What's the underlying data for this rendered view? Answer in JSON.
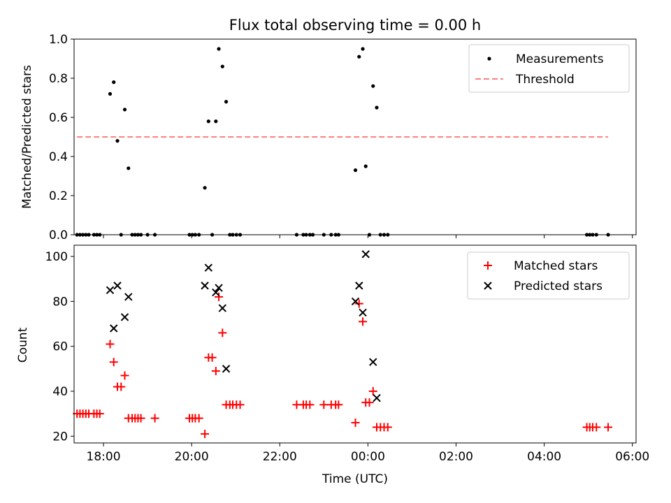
{
  "colors": {
    "measurements": "#000000",
    "threshold": "#ff8080",
    "matched": "#ff0000",
    "predicted": "#000000"
  },
  "chart_data": [
    {
      "type": "scatter",
      "title": "Flux total observing time = 0.00 h",
      "xlabel": "",
      "ylabel": "Matched/Predicted stars",
      "xlim": [
        "17:20",
        "06:05"
      ],
      "ylim": [
        0,
        1.0
      ],
      "yticks": [
        "0.0",
        "0.2",
        "0.4",
        "0.6",
        "0.8",
        "1.0"
      ],
      "yticks_values": [
        0,
        0.2,
        0.4,
        0.6,
        0.8,
        1.0
      ],
      "xticks_values": [
        "18:00",
        "20:00",
        "22:00",
        "00:00",
        "02:00",
        "04:00",
        "06:00"
      ],
      "legend_position": "upper-right",
      "series": [
        {
          "name": "Measurements",
          "marker": "dot",
          "points": [
            [
              "17:24",
              0
            ],
            [
              "17:28",
              0
            ],
            [
              "17:32",
              0
            ],
            [
              "17:36",
              0
            ],
            [
              "17:40",
              0
            ],
            [
              "17:47",
              0
            ],
            [
              "17:51",
              0
            ],
            [
              "17:55",
              0
            ],
            [
              "18:09",
              0.72
            ],
            [
              "18:14",
              0.78
            ],
            [
              "18:19",
              0.48
            ],
            [
              "18:24",
              0
            ],
            [
              "18:29",
              0.64
            ],
            [
              "18:34",
              0.34
            ],
            [
              "18:39",
              0
            ],
            [
              "18:43",
              0
            ],
            [
              "18:47",
              0
            ],
            [
              "18:51",
              0
            ],
            [
              "19:00",
              0
            ],
            [
              "19:10",
              0
            ],
            [
              "19:57",
              0
            ],
            [
              "20:01",
              0
            ],
            [
              "20:05",
              0
            ],
            [
              "20:10",
              0
            ],
            [
              "20:18",
              0.24
            ],
            [
              "20:23",
              0.58
            ],
            [
              "20:28",
              0
            ],
            [
              "20:33",
              0.58
            ],
            [
              "20:37",
              0.95
            ],
            [
              "20:42",
              0.86
            ],
            [
              "20:47",
              0.68
            ],
            [
              "20:52",
              0
            ],
            [
              "20:56",
              0
            ],
            [
              "21:01",
              0
            ],
            [
              "21:06",
              0
            ],
            [
              "22:23",
              0
            ],
            [
              "22:32",
              0
            ],
            [
              "22:36",
              0
            ],
            [
              "22:41",
              0
            ],
            [
              "22:45",
              0
            ],
            [
              "23:00",
              0
            ],
            [
              "23:10",
              0
            ],
            [
              "23:16",
              0
            ],
            [
              "23:20",
              0
            ],
            [
              "23:43",
              0.33
            ],
            [
              "23:48",
              0.91
            ],
            [
              "23:53",
              0.95
            ],
            [
              "23:57",
              0.35
            ],
            [
              "00:02",
              0
            ],
            [
              "00:07",
              0.76
            ],
            [
              "00:12",
              0.65
            ],
            [
              "00:17",
              0
            ],
            [
              "00:22",
              0
            ],
            [
              "00:27",
              0
            ],
            [
              "04:58",
              0
            ],
            [
              "05:02",
              0
            ],
            [
              "05:06",
              0
            ],
            [
              "05:11",
              0
            ],
            [
              "05:27",
              0
            ]
          ]
        },
        {
          "name": "Threshold",
          "style": "dashed-line",
          "points": [
            [
              "17:24",
              0.5
            ],
            [
              "05:27",
              0.5
            ]
          ]
        }
      ]
    },
    {
      "type": "scatter",
      "title": "",
      "xlabel": "Time (UTC)",
      "ylabel": "Count",
      "xlim": [
        "17:20",
        "06:05"
      ],
      "ylim": [
        17,
        105
      ],
      "yticks": [
        "20",
        "40",
        "60",
        "80",
        "100"
      ],
      "yticks_values": [
        20,
        40,
        60,
        80,
        100
      ],
      "xticks": [
        "18:00",
        "20:00",
        "22:00",
        "00:00",
        "02:00",
        "04:00",
        "06:00"
      ],
      "xticks_values": [
        "18:00",
        "20:00",
        "22:00",
        "00:00",
        "02:00",
        "04:00",
        "06:00"
      ],
      "legend_position": "upper-right",
      "series": [
        {
          "name": "Matched stars",
          "marker": "plus",
          "points": [
            [
              "17:24",
              30
            ],
            [
              "17:28",
              30
            ],
            [
              "17:32",
              30
            ],
            [
              "17:36",
              30
            ],
            [
              "17:40",
              30
            ],
            [
              "17:47",
              30
            ],
            [
              "17:51",
              30
            ],
            [
              "17:55",
              30
            ],
            [
              "18:09",
              61
            ],
            [
              "18:14",
              53
            ],
            [
              "18:19",
              42
            ],
            [
              "18:24",
              42
            ],
            [
              "18:29",
              47
            ],
            [
              "18:34",
              28
            ],
            [
              "18:39",
              28
            ],
            [
              "18:43",
              28
            ],
            [
              "18:47",
              28
            ],
            [
              "18:51",
              28
            ],
            [
              "19:10",
              28
            ],
            [
              "19:57",
              28
            ],
            [
              "20:01",
              28
            ],
            [
              "20:05",
              28
            ],
            [
              "20:10",
              28
            ],
            [
              "20:18",
              21
            ],
            [
              "20:23",
              55
            ],
            [
              "20:28",
              55
            ],
            [
              "20:33",
              49
            ],
            [
              "20:37",
              82
            ],
            [
              "20:42",
              66
            ],
            [
              "20:47",
              34
            ],
            [
              "20:52",
              34
            ],
            [
              "20:56",
              34
            ],
            [
              "21:01",
              34
            ],
            [
              "21:06",
              34
            ],
            [
              "22:23",
              34
            ],
            [
              "22:32",
              34
            ],
            [
              "22:36",
              34
            ],
            [
              "22:41",
              34
            ],
            [
              "23:00",
              34
            ],
            [
              "23:10",
              34
            ],
            [
              "23:16",
              34
            ],
            [
              "23:20",
              34
            ],
            [
              "23:43",
              26
            ],
            [
              "23:48",
              79
            ],
            [
              "23:53",
              71
            ],
            [
              "23:57",
              35
            ],
            [
              "00:02",
              35
            ],
            [
              "00:07",
              40
            ],
            [
              "00:12",
              24
            ],
            [
              "00:17",
              24
            ],
            [
              "00:22",
              24
            ],
            [
              "00:27",
              24
            ],
            [
              "04:58",
              24
            ],
            [
              "05:02",
              24
            ],
            [
              "05:06",
              24
            ],
            [
              "05:11",
              24
            ],
            [
              "05:27",
              24
            ]
          ]
        },
        {
          "name": "Predicted stars",
          "marker": "x",
          "points": [
            [
              "18:09",
              85
            ],
            [
              "18:14",
              68
            ],
            [
              "18:19",
              87
            ],
            [
              "18:29",
              73
            ],
            [
              "18:34",
              82
            ],
            [
              "20:18",
              87
            ],
            [
              "20:23",
              95
            ],
            [
              "20:33",
              84
            ],
            [
              "20:37",
              86
            ],
            [
              "20:42",
              77
            ],
            [
              "20:47",
              50
            ],
            [
              "23:43",
              80
            ],
            [
              "23:48",
              87
            ],
            [
              "23:53",
              75
            ],
            [
              "23:57",
              101
            ],
            [
              "00:07",
              53
            ],
            [
              "00:12",
              37
            ]
          ]
        }
      ]
    }
  ]
}
